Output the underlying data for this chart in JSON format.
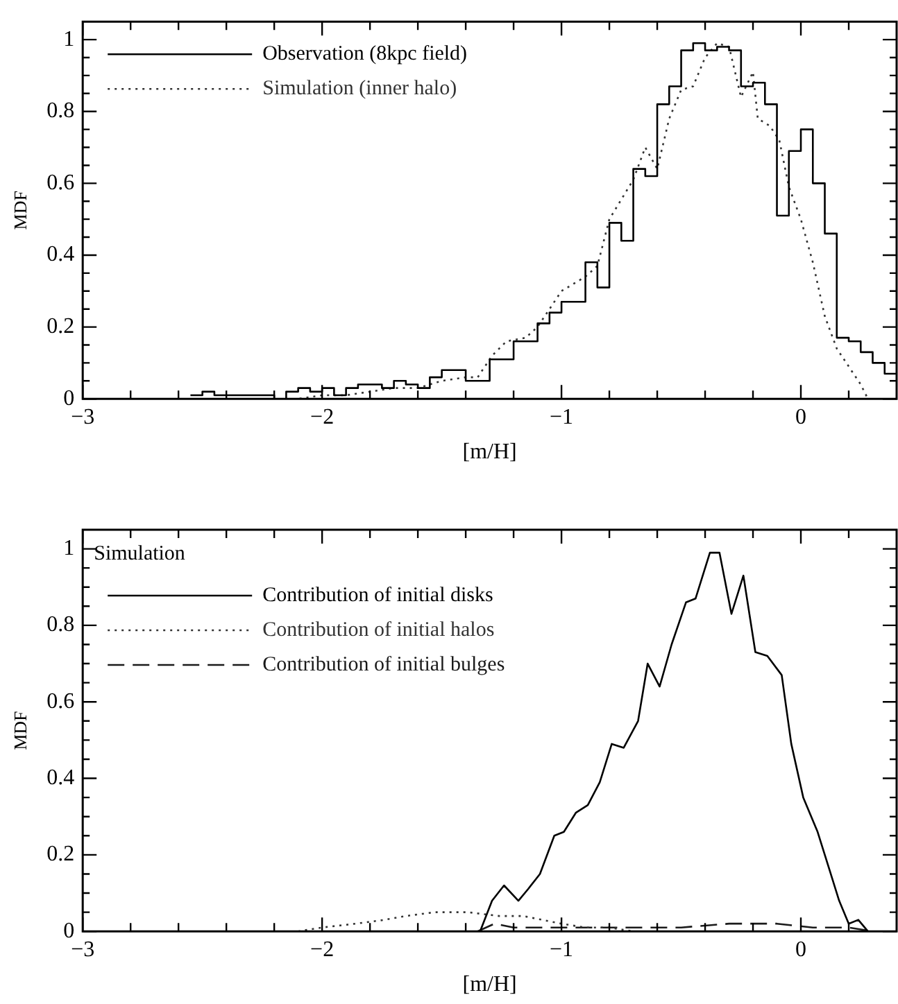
{
  "chart_data": [
    {
      "type": "histogram",
      "xlabel": "[m/H]",
      "ylabel": "MDF",
      "xlim": [
        -3,
        0.4
      ],
      "ylim": [
        0,
        1.05
      ],
      "xticks": [
        {
          "value": -3,
          "label": "−3"
        },
        {
          "value": -2.8,
          "label": null
        },
        {
          "value": -2.6,
          "label": null
        },
        {
          "value": -2.4,
          "label": null
        },
        {
          "value": -2.2,
          "label": null
        },
        {
          "value": -2,
          "label": "−2"
        },
        {
          "value": -1.8,
          "label": null
        },
        {
          "value": -1.6,
          "label": null
        },
        {
          "value": -1.4,
          "label": null
        },
        {
          "value": -1.2,
          "label": null
        },
        {
          "value": -1,
          "label": "−1"
        },
        {
          "value": -0.8,
          "label": null
        },
        {
          "value": -0.6,
          "label": null
        },
        {
          "value": -0.4,
          "label": null
        },
        {
          "value": -0.2,
          "label": null
        },
        0,
        {
          "value": 0.2,
          "label": null
        }
      ],
      "yticks": [
        0,
        {
          "value": 0.05,
          "label": null
        },
        {
          "value": 0.1,
          "label": null
        },
        {
          "value": 0.15,
          "label": null
        },
        0.2,
        {
          "value": 0.25,
          "label": null
        },
        {
          "value": 0.3,
          "label": null
        },
        {
          "value": 0.35,
          "label": null
        },
        0.4,
        {
          "value": 0.45,
          "label": null
        },
        {
          "value": 0.5,
          "label": null
        },
        {
          "value": 0.55,
          "label": null
        },
        0.6,
        {
          "value": 0.65,
          "label": null
        },
        {
          "value": 0.7,
          "label": null
        },
        {
          "value": 0.75,
          "label": null
        },
        0.8,
        {
          "value": 0.85,
          "label": null
        },
        {
          "value": 0.9,
          "label": null
        },
        {
          "value": 0.95,
          "label": null
        },
        1
      ],
      "grid": false,
      "legend": "top left",
      "marker": "none",
      "series": [
        {
          "name": "Observation (8kpc field)",
          "type": "histogram",
          "color": "#000000",
          "line_style": "solid",
          "bins": [
            -2.55,
            -2.5,
            -2.45,
            -2.4,
            -2.35,
            -2.3,
            -2.25,
            -2.2,
            -2.15,
            -2.1,
            -2.05,
            -2,
            -1.95,
            -1.9,
            -1.85,
            -1.8,
            -1.75,
            -1.7,
            -1.65,
            -1.6,
            -1.55,
            -1.5,
            -1.45,
            -1.4,
            -1.35,
            -1.3,
            -1.25,
            -1.2,
            -1.15,
            -1.1,
            -1.05,
            -1,
            -0.95,
            -0.9,
            -0.85,
            -0.8,
            -0.75,
            -0.7,
            -0.65,
            -0.6,
            -0.55,
            -0.5,
            -0.45,
            -0.4,
            -0.35,
            -0.3,
            -0.25,
            -0.2,
            -0.15,
            -0.1,
            -0.05,
            0,
            0.05,
            0.1,
            0.15,
            0.2,
            0.25,
            0.3,
            0.35,
            0.4
          ],
          "values": [
            0.01,
            0.02,
            0.01,
            0.01,
            0.01,
            0.01,
            0.01,
            0,
            0.02,
            0.03,
            0.02,
            0.03,
            0.01,
            0.03,
            0.04,
            0.04,
            0.03,
            0.05,
            0.04,
            0.03,
            0.06,
            0.08,
            0.08,
            0.05,
            0.05,
            0.11,
            0.11,
            0.16,
            0.16,
            0.21,
            0.24,
            0.27,
            0.27,
            0.38,
            0.31,
            0.49,
            0.44,
            0.64,
            0.62,
            0.82,
            0.87,
            0.97,
            0.99,
            0.97,
            0.98,
            0.97,
            0.87,
            0.88,
            0.82,
            0.51,
            0.69,
            0.75,
            0.6,
            0.46,
            0.17,
            0.16,
            0.13,
            0.1,
            0.07
          ]
        },
        {
          "name": "Simulation (inner halo)",
          "type": "line",
          "color": "#333333",
          "line_style": "dotted",
          "x": [
            -2.5,
            -2.1,
            -2,
            -1.9,
            -1.8,
            -1.7,
            -1.6,
            -1.5,
            -1.4,
            -1.35,
            -1.29,
            -1.23,
            -1.15,
            -1.1,
            -1,
            -0.9,
            -0.85,
            -0.8,
            -0.7,
            -0.65,
            -0.6,
            -0.55,
            -0.5,
            -0.45,
            -0.4,
            -0.35,
            -0.3,
            -0.25,
            -0.2,
            -0.18,
            -0.13,
            -0.09,
            -0.05,
            0,
            0.05,
            0.1,
            0.15,
            0.2,
            0.25,
            0.28
          ],
          "values": [
            0,
            0,
            0.01,
            0.01,
            0.02,
            0.03,
            0.03,
            0.05,
            0.06,
            0.06,
            0.12,
            0.16,
            0.17,
            0.2,
            0.3,
            0.34,
            0.37,
            0.5,
            0.61,
            0.7,
            0.64,
            0.78,
            0.86,
            0.87,
            0.95,
            0.99,
            0.98,
            0.84,
            0.91,
            0.78,
            0.76,
            0.72,
            0.59,
            0.5,
            0.38,
            0.23,
            0.14,
            0.09,
            0.04,
            0
          ]
        }
      ]
    },
    {
      "type": "line",
      "xlabel": "[m/H]",
      "ylabel": "MDF",
      "legend_title": "Simulation",
      "xlim": [
        -3,
        0.4
      ],
      "ylim": [
        0,
        1.05
      ],
      "xticks": [
        {
          "value": -3,
          "label": "−3"
        },
        {
          "value": -2.8,
          "label": null
        },
        {
          "value": -2.6,
          "label": null
        },
        {
          "value": -2.4,
          "label": null
        },
        {
          "value": -2.2,
          "label": null
        },
        {
          "value": -2,
          "label": "−2"
        },
        {
          "value": -1.8,
          "label": null
        },
        {
          "value": -1.6,
          "label": null
        },
        {
          "value": -1.4,
          "label": null
        },
        {
          "value": -1.2,
          "label": null
        },
        {
          "value": -1,
          "label": "−1"
        },
        {
          "value": -0.8,
          "label": null
        },
        {
          "value": -0.6,
          "label": null
        },
        {
          "value": -0.4,
          "label": null
        },
        {
          "value": -0.2,
          "label": null
        },
        0,
        {
          "value": 0.2,
          "label": null
        }
      ],
      "yticks": [
        0,
        {
          "value": 0.05,
          "label": null
        },
        {
          "value": 0.1,
          "label": null
        },
        {
          "value": 0.15,
          "label": null
        },
        0.2,
        {
          "value": 0.25,
          "label": null
        },
        {
          "value": 0.3,
          "label": null
        },
        {
          "value": 0.35,
          "label": null
        },
        0.4,
        {
          "value": 0.45,
          "label": null
        },
        {
          "value": 0.5,
          "label": null
        },
        {
          "value": 0.55,
          "label": null
        },
        0.6,
        {
          "value": 0.65,
          "label": null
        },
        {
          "value": 0.7,
          "label": null
        },
        {
          "value": 0.75,
          "label": null
        },
        0.8,
        {
          "value": 0.85,
          "label": null
        },
        {
          "value": 0.9,
          "label": null
        },
        {
          "value": 0.95,
          "label": null
        },
        1
      ],
      "grid": false,
      "legend": "top left",
      "marker": "none",
      "series": [
        {
          "name": "Contribution of initial disks",
          "color": "#000000",
          "line_style": "solid",
          "x": [
            -1.4,
            -1.34,
            -1.29,
            -1.24,
            -1.18,
            -1.14,
            -1.09,
            -1.03,
            -0.99,
            -0.94,
            -0.89,
            -0.84,
            -0.79,
            -0.74,
            -0.68,
            -0.64,
            -0.59,
            -0.54,
            -0.48,
            -0.44,
            -0.38,
            -0.34,
            -0.29,
            -0.24,
            -0.19,
            -0.14,
            -0.08,
            -0.04,
            0.01,
            0.07,
            0.12,
            0.16,
            0.2,
            0.24,
            0.28
          ],
          "values": [
            0,
            0,
            0.08,
            0.12,
            0.08,
            0.11,
            0.15,
            0.25,
            0.26,
            0.31,
            0.33,
            0.39,
            0.49,
            0.48,
            0.55,
            0.7,
            0.64,
            0.75,
            0.86,
            0.87,
            0.99,
            0.99,
            0.83,
            0.93,
            0.73,
            0.72,
            0.67,
            0.49,
            0.35,
            0.26,
            0.16,
            0.08,
            0.02,
            0.03,
            0
          ]
        },
        {
          "name": "Contribution of initial halos",
          "color": "#333333",
          "line_style": "dotted",
          "x": [
            -2.1,
            -2,
            -1.86,
            -1.74,
            -1.65,
            -1.53,
            -1.39,
            -1.26,
            -1.16,
            -1.08,
            -1,
            -0.9,
            -0.8,
            -0.7,
            -0.6
          ],
          "values": [
            0,
            0.01,
            0.02,
            0.03,
            0.04,
            0.05,
            0.05,
            0.04,
            0.04,
            0.03,
            0.02,
            0.01,
            0.01,
            0,
            0
          ]
        },
        {
          "name": "Contribution of initial bulges",
          "color": "#1a1a1a",
          "line_style": "dashed",
          "x": [
            -1.35,
            -1.28,
            -1.2,
            -1.1,
            -0.9,
            -0.7,
            -0.5,
            -0.3,
            -0.1,
            0.05,
            0.2,
            0.3
          ],
          "values": [
            0,
            0.02,
            0.01,
            0.01,
            0.01,
            0.01,
            0.01,
            0.02,
            0.02,
            0.01,
            0.01,
            0
          ]
        }
      ]
    }
  ]
}
